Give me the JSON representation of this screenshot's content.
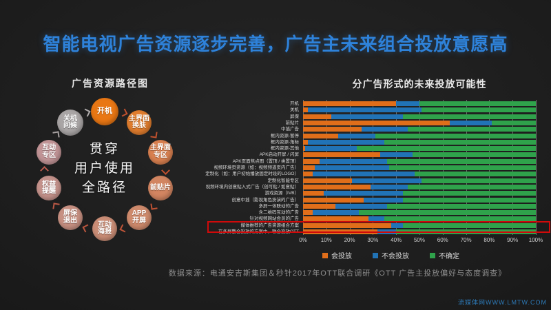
{
  "slide_title": "智能电视广告资源逐步完善，广告主未来组合投放意愿高",
  "diagram": {
    "title": "广告资源路径图",
    "center_lines": [
      "贯穿",
      "用户使用",
      "全路径"
    ],
    "nodes": [
      {
        "id": "kaiji",
        "lines": [
          "开机"
        ],
        "color": "#E97714",
        "r": 20,
        "font": 11
      },
      {
        "id": "zhujiemian-huanfu",
        "lines": [
          "主界面",
          "换肤"
        ],
        "color": "#E07D2E",
        "r": 18,
        "font": 10
      },
      {
        "id": "zhujiemian-zhuanqu",
        "lines": [
          "主界面",
          "专区"
        ],
        "color": "#D98050",
        "r": 18,
        "font": 10
      },
      {
        "id": "qiantiepian",
        "lines": [
          "前贴片"
        ],
        "color": "#D28561",
        "r": 18,
        "font": 10
      },
      {
        "id": "app-kaiping",
        "lines": [
          "APP",
          "开屏"
        ],
        "color": "#CE8A6C",
        "r": 18,
        "font": 10
      },
      {
        "id": "hudong-haibao",
        "lines": [
          "互动",
          "海报"
        ],
        "color": "#CA8D76",
        "r": 18,
        "font": 10
      },
      {
        "id": "pingbao-tuichu",
        "lines": [
          "屏保",
          "退出"
        ],
        "color": "#C79082",
        "r": 18,
        "font": 10
      },
      {
        "id": "quanyi-tixing",
        "lines": [
          "权益",
          "提醒"
        ],
        "color": "#C4928B",
        "r": 18,
        "font": 10
      },
      {
        "id": "hudong-zhuanqu",
        "lines": [
          "互动",
          "专区"
        ],
        "color": "#C19496",
        "r": 18,
        "font": 10
      },
      {
        "id": "guanji-wenhou",
        "lines": [
          "关机",
          "问候"
        ],
        "color": "#A9A5A5",
        "r": 19,
        "font": 10
      }
    ],
    "arrow_colors": [
      "#C2512E",
      "#C2512E",
      "#C1502F",
      "#C05233",
      "#BE5437",
      "#BC563E",
      "#BA5845",
      "#B75A4D",
      "#A6A0A0",
      "#AFABAB"
    ]
  },
  "chart_data": {
    "type": "bar",
    "orientation": "horizontal",
    "stacked": true,
    "title": "分广告形式的未来投放可能性",
    "xlabel": "",
    "ylabel": "",
    "xlim": [
      0,
      100
    ],
    "grid": true,
    "legend_position": "bottom",
    "x_ticks": [
      "0%",
      "10%",
      "20%",
      "30%",
      "40%",
      "50%",
      "60%",
      "70%",
      "80%",
      "90%",
      "100%"
    ],
    "categories": [
      "开机",
      "关机",
      "屏保",
      "前贴片",
      "中插广告",
      "框内资源-暂停",
      "框内资源-角标",
      "框内资源-其他",
      "APK启动开屏 / 闪屏",
      "APK页面焦点图（置顶 / 类置顶）",
      "视频环境页资源（如：视频频道页内广告）",
      "定制化（如：用户初始播放固定时段的LOGO）",
      "定制化智能专区",
      "视频环境内创意贴入式广告（创可贴 / 如意贴）",
      "游戏资源（IVB）",
      "创意中插（影视角色扮演的广告）",
      "多屏一体联动的广告",
      "含二维码互动的广告",
      "针对视频网站会员的广告",
      "媒体推荐的广告资源组合方案",
      "在多屏整合投放的方案中，联合投放OTT"
    ],
    "series": [
      {
        "name": "会投放",
        "color": "#E06E1A",
        "values": [
          40,
          2,
          12,
          63,
          25,
          15,
          2,
          1,
          33,
          7,
          5,
          4,
          21,
          29,
          9,
          26,
          14,
          4,
          28,
          38,
          32
        ]
      },
      {
        "name": "不会投放",
        "color": "#2173B6",
        "values": [
          10,
          49,
          31,
          18,
          20,
          16,
          33,
          22,
          14,
          29,
          32,
          44,
          30,
          16,
          34,
          17,
          22,
          20,
          7,
          5,
          8
        ]
      },
      {
        "name": "不确定",
        "color": "#2FA24B",
        "values": [
          50,
          49,
          57,
          19,
          55,
          69,
          65,
          77,
          53,
          64,
          63,
          52,
          49,
          55,
          57,
          57,
          64,
          76,
          65,
          57,
          60
        ]
      }
    ],
    "legend": [
      {
        "name": "会投放",
        "color": "#E06E1A"
      },
      {
        "name": "不会投放",
        "color": "#2173B6"
      },
      {
        "name": "不确定",
        "color": "#2FA24B"
      }
    ],
    "highlighted_category_index": 19,
    "highlight_color": "#CF0A0A"
  },
  "footer": "数据来源：电通安吉斯集团＆秒针2017年OTT联合调研《OTT 广告主投放偏好与态度调查》",
  "watermark": "流媒体网WWW.LMTW.COM"
}
